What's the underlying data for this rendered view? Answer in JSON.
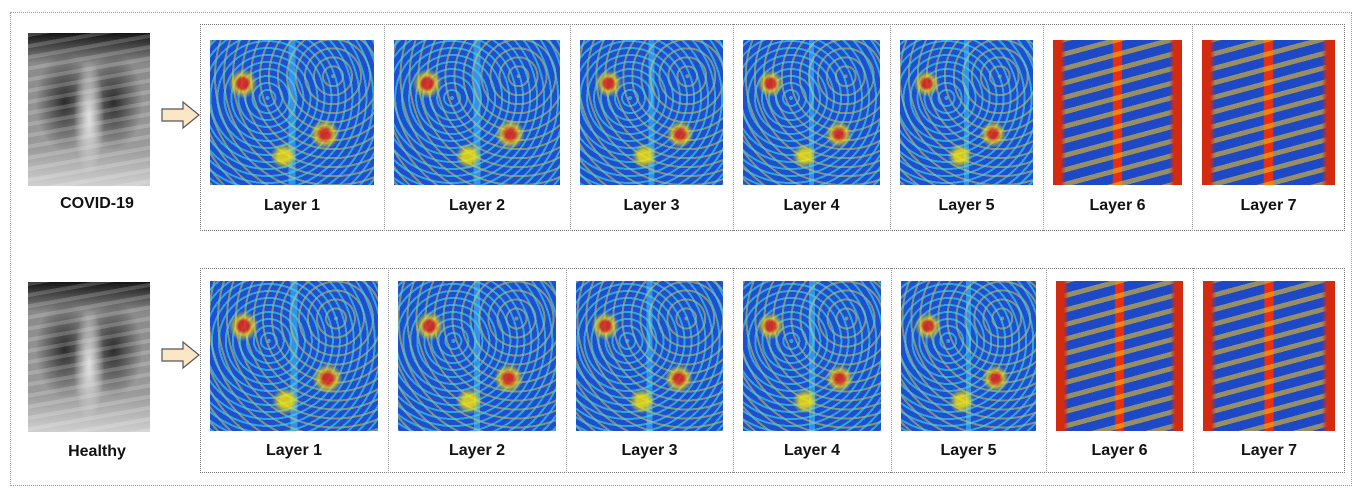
{
  "rows": [
    {
      "label": "COVID-19",
      "layers": [
        "Layer 1",
        "Layer 2",
        "Layer 3",
        "Layer 4",
        "Layer 5",
        "Layer 6",
        "Layer 7"
      ]
    },
    {
      "label": "Healthy",
      "layers": [
        "Layer 1",
        "Layer 2",
        "Layer 3",
        "Layer 4",
        "Layer 5",
        "Layer 6",
        "Layer 7"
      ]
    }
  ]
}
